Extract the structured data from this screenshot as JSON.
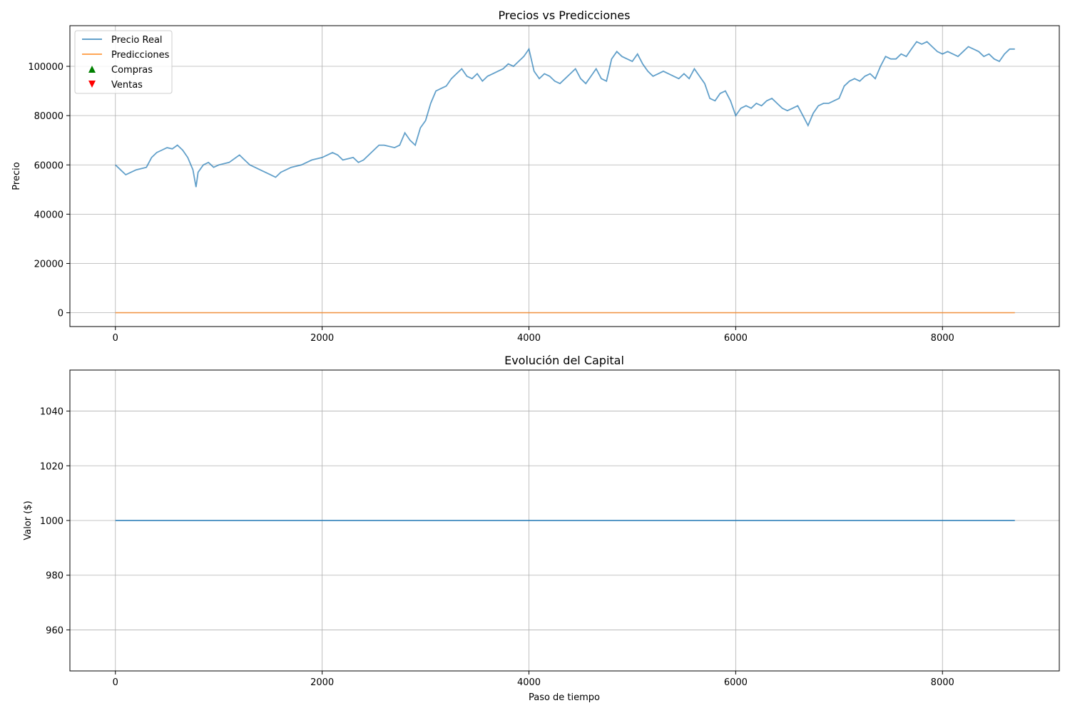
{
  "chart_data": [
    {
      "type": "line",
      "title": "Precios vs Predicciones",
      "xlabel": "",
      "ylabel": "Precio",
      "xlim": [
        -440,
        9130
      ],
      "ylim": [
        -5600,
        116500
      ],
      "xticks": [
        0,
        2000,
        4000,
        6000,
        8000
      ],
      "yticks": [
        0,
        20000,
        40000,
        60000,
        80000,
        100000
      ],
      "grid": true,
      "legend_position": "top-left",
      "legend": [
        {
          "label": "Precio Real",
          "marker": "line",
          "color": "#1f77b4"
        },
        {
          "label": "Predicciones",
          "marker": "line",
          "color": "#ff7f0e"
        },
        {
          "label": "Compras",
          "marker": "triangle-up",
          "color": "#008000"
        },
        {
          "label": "Ventas",
          "marker": "triangle-down",
          "color": "#ff0000"
        }
      ],
      "series": [
        {
          "name": "Precio Real",
          "color": "#1f77b4",
          "x": [
            0,
            50,
            100,
            200,
            300,
            350,
            400,
            450,
            500,
            550,
            600,
            650,
            700,
            750,
            780,
            800,
            850,
            900,
            950,
            1000,
            1100,
            1200,
            1250,
            1300,
            1350,
            1400,
            1500,
            1550,
            1600,
            1700,
            1800,
            1900,
            2000,
            2050,
            2100,
            2150,
            2200,
            2300,
            2350,
            2400,
            2500,
            2550,
            2600,
            2700,
            2750,
            2800,
            2850,
            2900,
            2950,
            3000,
            3050,
            3100,
            3150,
            3200,
            3250,
            3300,
            3350,
            3400,
            3450,
            3500,
            3550,
            3600,
            3650,
            3700,
            3750,
            3800,
            3850,
            3900,
            3950,
            4000,
            4050,
            4100,
            4150,
            4200,
            4250,
            4300,
            4350,
            4400,
            4450,
            4500,
            4550,
            4600,
            4650,
            4700,
            4750,
            4800,
            4850,
            4900,
            4950,
            5000,
            5050,
            5100,
            5150,
            5200,
            5250,
            5300,
            5350,
            5400,
            5450,
            5500,
            5550,
            5600,
            5650,
            5700,
            5750,
            5800,
            5850,
            5900,
            5950,
            6000,
            6050,
            6100,
            6150,
            6200,
            6250,
            6300,
            6350,
            6400,
            6450,
            6500,
            6550,
            6600,
            6650,
            6700,
            6750,
            6800,
            6850,
            6900,
            6950,
            7000,
            7050,
            7100,
            7150,
            7200,
            7250,
            7300,
            7350,
            7400,
            7450,
            7500,
            7550,
            7600,
            7650,
            7700,
            7750,
            7800,
            7850,
            7900,
            7950,
            8000,
            8050,
            8100,
            8150,
            8200,
            8250,
            8300,
            8350,
            8400,
            8450,
            8500,
            8550,
            8600,
            8650,
            8700
          ],
          "values": [
            60000,
            58000,
            56000,
            58000,
            59000,
            63000,
            65000,
            66000,
            67000,
            66500,
            68000,
            66000,
            63000,
            58000,
            51000,
            57000,
            60000,
            61000,
            59000,
            60000,
            61000,
            64000,
            62000,
            60000,
            59000,
            58000,
            56000,
            55000,
            57000,
            59000,
            60000,
            62000,
            63000,
            64000,
            65000,
            64000,
            62000,
            63000,
            61000,
            62000,
            66000,
            68000,
            68000,
            67000,
            68000,
            73000,
            70000,
            68000,
            75000,
            78000,
            85000,
            90000,
            91000,
            92000,
            95000,
            97000,
            99000,
            96000,
            95000,
            97000,
            94000,
            96000,
            97000,
            98000,
            99000,
            101000,
            100000,
            102000,
            104000,
            107000,
            98000,
            95000,
            97000,
            96000,
            94000,
            93000,
            95000,
            97000,
            99000,
            95000,
            93000,
            96000,
            99000,
            95000,
            94000,
            103000,
            106000,
            104000,
            103000,
            102000,
            105000,
            101000,
            98000,
            96000,
            97000,
            98000,
            97000,
            96000,
            95000,
            97000,
            95000,
            99000,
            96000,
            93000,
            87000,
            86000,
            89000,
            90000,
            86000,
            80000,
            83000,
            84000,
            83000,
            85000,
            84000,
            86000,
            87000,
            85000,
            83000,
            82000,
            83000,
            84000,
            80000,
            76000,
            81000,
            84000,
            85000,
            85000,
            86000,
            87000,
            92000,
            94000,
            95000,
            94000,
            96000,
            97000,
            95000,
            100000,
            104000,
            103000,
            103000,
            105000,
            104000,
            107000,
            110000,
            109000,
            110000,
            108000,
            106000,
            105000,
            106000,
            105000,
            104000,
            106000,
            108000,
            107000,
            106000,
            104000,
            105000,
            103000,
            102000,
            105000,
            107000,
            107000
          ]
        },
        {
          "name": "Predicciones",
          "color": "#ff7f0e",
          "x": [
            0,
            8700
          ],
          "values": [
            0,
            0
          ]
        }
      ]
    },
    {
      "type": "line",
      "title": "Evolución del Capital",
      "xlabel": "Paso de tiempo",
      "ylabel": "Valor ($)",
      "xlim": [
        -440,
        9130
      ],
      "ylim": [
        945,
        1055
      ],
      "xticks": [
        0,
        2000,
        4000,
        6000,
        8000
      ],
      "yticks": [
        960,
        980,
        1000,
        1020,
        1040
      ],
      "grid": true,
      "series": [
        {
          "color": "#1f77b4",
          "x": [
            0,
            8700
          ],
          "values": [
            1000,
            1000
          ]
        }
      ]
    }
  ]
}
